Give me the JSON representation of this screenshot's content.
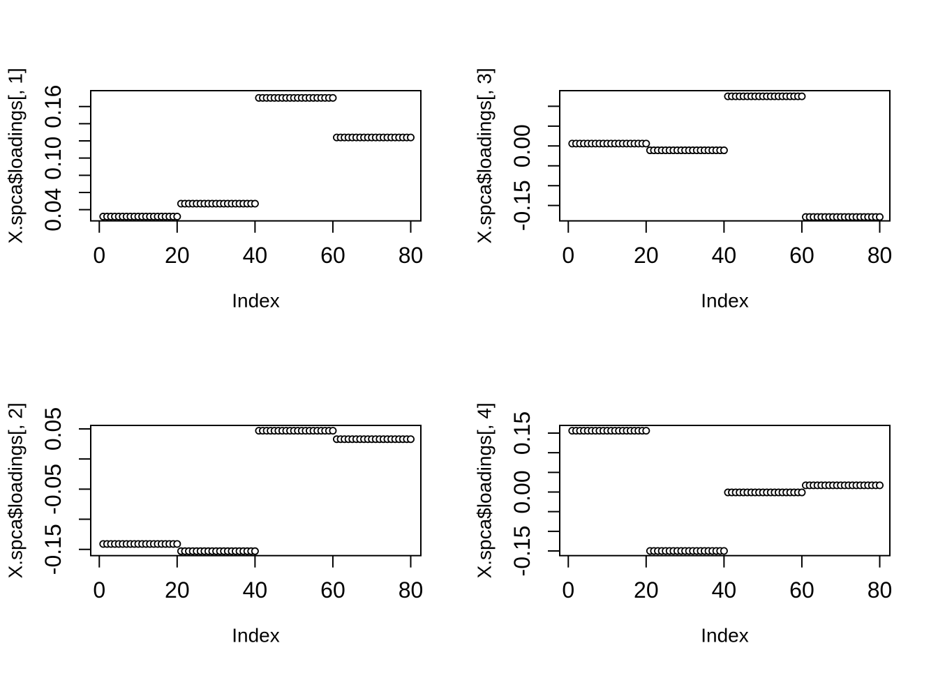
{
  "figure": {
    "background": "#ffffff",
    "foreground": "#000000",
    "layout": "2x2-grid-mfcol"
  },
  "chart_data": [
    {
      "type": "scatter",
      "position": "top-left",
      "title": "",
      "xlabel": "Index",
      "ylabel": "X.spca$loadings[, 1]",
      "marker": "open-circle-white-fill",
      "grid": false,
      "legend": "none",
      "xlim": [
        -2.2,
        82.6
      ],
      "ylim": [
        0.027,
        0.1784
      ],
      "xticks": [
        {
          "v": 0,
          "label": "0"
        },
        {
          "v": 20,
          "label": "20"
        },
        {
          "v": 40,
          "label": "40"
        },
        {
          "v": 60,
          "label": "60"
        },
        {
          "v": 80,
          "label": "80"
        }
      ],
      "yticks": [
        {
          "v": 0.16,
          "label": "0.16"
        },
        {
          "v": 0.14,
          "label": ""
        },
        {
          "v": 0.12,
          "label": ""
        },
        {
          "v": 0.1,
          "label": "0.10"
        },
        {
          "v": 0.08,
          "label": ""
        },
        {
          "v": 0.06,
          "label": ""
        },
        {
          "v": 0.04,
          "label": "0.04"
        }
      ],
      "groups": [
        {
          "x_from": 1,
          "x_to": 20,
          "y": 0.032
        },
        {
          "x_from": 21,
          "x_to": 40,
          "y": 0.047
        },
        {
          "x_from": 41,
          "x_to": 60,
          "y": 0.17
        },
        {
          "x_from": 61,
          "x_to": 80,
          "y": 0.124
        }
      ]
    },
    {
      "type": "scatter",
      "position": "top-right",
      "title": "",
      "xlabel": "Index",
      "ylabel": "X.spca$loadings[, 3]",
      "marker": "open-circle-white-fill",
      "grid": false,
      "legend": "none",
      "xlim": [
        -2.2,
        82.6
      ],
      "ylim": [
        -0.1887,
        0.1393
      ],
      "xticks": [
        {
          "v": 0,
          "label": "0"
        },
        {
          "v": 20,
          "label": "20"
        },
        {
          "v": 40,
          "label": "40"
        },
        {
          "v": 60,
          "label": "60"
        },
        {
          "v": 80,
          "label": "80"
        }
      ],
      "yticks": [
        {
          "v": 0.1,
          "label": ""
        },
        {
          "v": 0.05,
          "label": ""
        },
        {
          "v": 0.0,
          "label": "0.00"
        },
        {
          "v": -0.05,
          "label": ""
        },
        {
          "v": -0.1,
          "label": ""
        },
        {
          "v": -0.15,
          "label": "-0.15"
        }
      ],
      "groups": [
        {
          "x_from": 1,
          "x_to": 20,
          "y": 0.006
        },
        {
          "x_from": 21,
          "x_to": 40,
          "y": -0.011
        },
        {
          "x_from": 41,
          "x_to": 60,
          "y": 0.125
        },
        {
          "x_from": 61,
          "x_to": 80,
          "y": -0.179
        }
      ]
    },
    {
      "type": "scatter",
      "position": "bottom-left",
      "title": "",
      "xlabel": "Index",
      "ylabel": "X.spca$loadings[, 2]",
      "marker": "open-circle-white-fill",
      "grid": false,
      "legend": "none",
      "xlim": [
        -2.2,
        82.6
      ],
      "ylim": [
        -0.1604,
        0.0558
      ],
      "xticks": [
        {
          "v": 0,
          "label": "0"
        },
        {
          "v": 20,
          "label": "20"
        },
        {
          "v": 40,
          "label": "40"
        },
        {
          "v": 60,
          "label": "60"
        },
        {
          "v": 80,
          "label": "80"
        }
      ],
      "yticks": [
        {
          "v": 0.05,
          "label": "0.05"
        },
        {
          "v": 0.0,
          "label": ""
        },
        {
          "v": -0.05,
          "label": "-0.05"
        },
        {
          "v": -0.1,
          "label": ""
        },
        {
          "v": -0.15,
          "label": "-0.15"
        }
      ],
      "groups": [
        {
          "x_from": 1,
          "x_to": 20,
          "y": -0.141
        },
        {
          "x_from": 21,
          "x_to": 40,
          "y": -0.153
        },
        {
          "x_from": 41,
          "x_to": 60,
          "y": 0.047
        },
        {
          "x_from": 61,
          "x_to": 80,
          "y": 0.033
        }
      ]
    },
    {
      "type": "scatter",
      "position": "bottom-right",
      "title": "",
      "xlabel": "Index",
      "ylabel": "X.spca$loadings[, 4]",
      "marker": "open-circle-white-fill",
      "grid": false,
      "legend": "none",
      "xlim": [
        -2.2,
        82.6
      ],
      "ylim": [
        -0.1619,
        0.1695
      ],
      "xticks": [
        {
          "v": 0,
          "label": "0"
        },
        {
          "v": 20,
          "label": "20"
        },
        {
          "v": 40,
          "label": "40"
        },
        {
          "v": 60,
          "label": "60"
        },
        {
          "v": 80,
          "label": "80"
        }
      ],
      "yticks": [
        {
          "v": 0.15,
          "label": "0.15"
        },
        {
          "v": 0.1,
          "label": ""
        },
        {
          "v": 0.05,
          "label": ""
        },
        {
          "v": 0.0,
          "label": "0.00"
        },
        {
          "v": -0.05,
          "label": ""
        },
        {
          "v": -0.1,
          "label": ""
        },
        {
          "v": -0.15,
          "label": "-0.15"
        }
      ],
      "groups": [
        {
          "x_from": 1,
          "x_to": 20,
          "y": 0.156
        },
        {
          "x_from": 21,
          "x_to": 40,
          "y": -0.15
        },
        {
          "x_from": 41,
          "x_to": 60,
          "y": -0.001
        },
        {
          "x_from": 61,
          "x_to": 80,
          "y": 0.017
        }
      ]
    }
  ]
}
